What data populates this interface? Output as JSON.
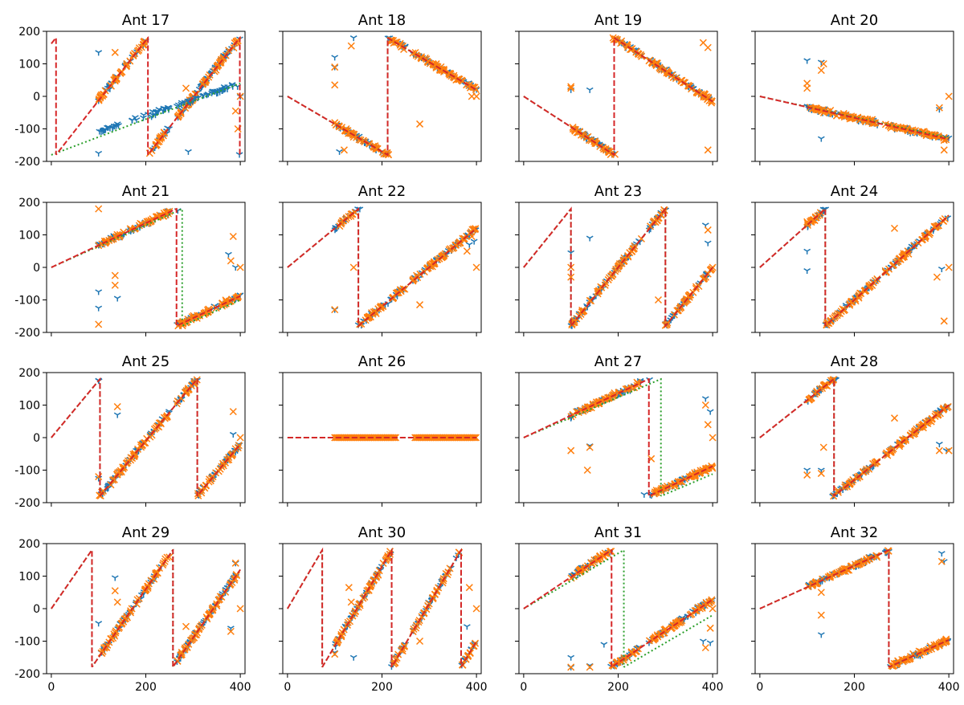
{
  "chart_data": {
    "type": "scatter",
    "grid": false,
    "xlim": [
      -10,
      410
    ],
    "ylim": [
      -200,
      200
    ],
    "xticks": [
      0,
      200,
      400
    ],
    "yticks": [
      -200,
      -100,
      0,
      100,
      200
    ],
    "xtick_labels": [
      "0",
      "200",
      "400"
    ],
    "ytick_labels": [
      "-200",
      "-100",
      "0",
      "100",
      "200"
    ],
    "x_range": [
      0,
      400
    ],
    "colors": {
      "marker_y": "#1f77b4",
      "marker_x": "#ff7f0e",
      "dashed": "#d62728",
      "dotted": "#2ca02c"
    },
    "panels": [
      {
        "title": "Ant 17",
        "fit_slope": 1.85,
        "fit_offset": 162,
        "dotted_slope": 0.55,
        "dotted_offset": 180,
        "data_x": [
          100,
          400
        ],
        "y_track": [
          -110,
          40
        ],
        "outliers_y": [
          [
            100,
            135
          ],
          [
            100,
            -175
          ],
          [
            290,
            -170
          ],
          [
            400,
            0
          ]
        ],
        "outliers_x": [
          [
            135,
            135
          ],
          [
            285,
            25
          ],
          [
            390,
            -45
          ],
          [
            400,
            0
          ],
          [
            395,
            -100
          ]
        ]
      },
      {
        "title": "Ant 18",
        "fit_slope": -0.85,
        "fit_offset": 0,
        "dotted_slope": -0.85,
        "dotted_offset": 0,
        "data_x": [
          100,
          400
        ],
        "outliers_y": [
          [
            100,
            120
          ],
          [
            100,
            90
          ],
          [
            140,
            180
          ],
          [
            110,
            -170
          ]
        ],
        "outliers_x": [
          [
            100,
            90
          ],
          [
            100,
            35
          ],
          [
            135,
            155
          ],
          [
            120,
            -165
          ],
          [
            280,
            -85
          ],
          [
            390,
            0
          ],
          [
            400,
            0
          ]
        ]
      },
      {
        "title": "Ant 19",
        "fit_slope": -0.94,
        "fit_offset": 0,
        "dotted_slope": -0.94,
        "dotted_offset": 0,
        "data_x": [
          100,
          400
        ],
        "outliers_y": [
          [
            140,
            20
          ],
          [
            100,
            20
          ]
        ],
        "outliers_x": [
          [
            100,
            25
          ],
          [
            100,
            30
          ],
          [
            380,
            165
          ],
          [
            390,
            -165
          ],
          [
            390,
            150
          ]
        ]
      },
      {
        "title": "Ant 20",
        "fit_slope": -0.33,
        "fit_offset": 0,
        "dotted_slope": -0.32,
        "dotted_offset": 0,
        "data_x": [
          100,
          400
        ],
        "outliers_y": [
          [
            100,
            110
          ],
          [
            130,
            105
          ],
          [
            130,
            -130
          ],
          [
            380,
            -40
          ]
        ],
        "outliers_x": [
          [
            100,
            40
          ],
          [
            100,
            25
          ],
          [
            135,
            100
          ],
          [
            130,
            80
          ],
          [
            380,
            -35
          ],
          [
            390,
            -165
          ],
          [
            400,
            0
          ],
          [
            390,
            -135
          ]
        ]
      },
      {
        "title": "Ant 21",
        "fit_slope": 0.68,
        "fit_offset": 0,
        "dotted_slope": 0.65,
        "dotted_offset": 0,
        "data_x": [
          100,
          400
        ],
        "outliers_y": [
          [
            100,
            -75
          ],
          [
            100,
            -125
          ],
          [
            140,
            -95
          ],
          [
            375,
            40
          ],
          [
            390,
            0
          ]
        ],
        "outliers_x": [
          [
            100,
            180
          ],
          [
            100,
            -175
          ],
          [
            135,
            -25
          ],
          [
            135,
            -55
          ],
          [
            385,
            95
          ],
          [
            380,
            20
          ],
          [
            400,
            0
          ]
        ]
      },
      {
        "title": "Ant 22",
        "fit_slope": 1.2,
        "fit_offset": 0,
        "dotted_slope": 1.2,
        "dotted_offset": 0,
        "data_x": [
          100,
          400
        ],
        "outliers_y": [
          [
            100,
            -130
          ],
          [
            385,
            70
          ],
          [
            395,
            80
          ]
        ],
        "outliers_x": [
          [
            100,
            -130
          ],
          [
            140,
            0
          ],
          [
            280,
            -115
          ],
          [
            380,
            50
          ],
          [
            400,
            0
          ],
          [
            390,
            95
          ]
        ]
      },
      {
        "title": "Ant 23",
        "fit_slope": 1.8,
        "fit_offset": 0,
        "dotted_slope": 1.8,
        "dotted_offset": 0,
        "data_x": [
          100,
          400
        ],
        "outliers_y": [
          [
            140,
            90
          ],
          [
            100,
            45
          ],
          [
            385,
            130
          ],
          [
            390,
            75
          ]
        ],
        "outliers_x": [
          [
            100,
            0
          ],
          [
            100,
            -30
          ],
          [
            285,
            -100
          ],
          [
            390,
            115
          ],
          [
            400,
            0
          ],
          [
            390,
            -20
          ]
        ]
      },
      {
        "title": "Ant 24",
        "fit_slope": 1.3,
        "fit_offset": 0,
        "dotted_slope": 1.3,
        "dotted_offset": 0,
        "data_x": [
          100,
          400
        ],
        "outliers_y": [
          [
            100,
            50
          ],
          [
            100,
            -10
          ],
          [
            385,
            -5
          ]
        ],
        "outliers_x": [
          [
            100,
            140
          ],
          [
            285,
            120
          ],
          [
            375,
            -30
          ],
          [
            390,
            -165
          ],
          [
            400,
            0
          ]
        ]
      },
      {
        "title": "Ant 25",
        "fit_slope": 1.75,
        "fit_offset": 0,
        "dotted_slope": 1.75,
        "dotted_offset": 0,
        "data_x": [
          100,
          400
        ],
        "outliers_y": [
          [
            140,
            70
          ],
          [
            100,
            -125
          ],
          [
            385,
            10
          ]
        ],
        "outliers_x": [
          [
            140,
            95
          ],
          [
            100,
            -120
          ],
          [
            385,
            80
          ],
          [
            400,
            0
          ]
        ]
      },
      {
        "title": "Ant 26",
        "fit_slope": 0,
        "fit_offset": 0,
        "dotted_slope": 0,
        "dotted_offset": 0,
        "data_x": [
          100,
          400
        ],
        "flat": true,
        "outliers_y": [],
        "outliers_x": []
      },
      {
        "title": "Ant 27",
        "fit_slope": 0.68,
        "fit_offset": 0,
        "dotted_slope": 0.62,
        "dotted_offset": 0,
        "data_x": [
          100,
          400
        ],
        "outliers_y": [
          [
            140,
            -25
          ],
          [
            100,
            60
          ],
          [
            255,
            -175
          ],
          [
            385,
            120
          ],
          [
            395,
            80
          ]
        ],
        "outliers_x": [
          [
            100,
            -40
          ],
          [
            140,
            -30
          ],
          [
            135,
            -100
          ],
          [
            270,
            -65
          ],
          [
            385,
            100
          ],
          [
            390,
            40
          ],
          [
            400,
            0
          ]
        ]
      },
      {
        "title": "Ant 28",
        "fit_slope": 1.15,
        "fit_offset": 0,
        "dotted_slope": 1.15,
        "dotted_offset": 0,
        "data_x": [
          100,
          400
        ],
        "outliers_y": [
          [
            100,
            -100
          ],
          [
            130,
            -100
          ],
          [
            380,
            -20
          ],
          [
            395,
            -40
          ]
        ],
        "outliers_x": [
          [
            100,
            -115
          ],
          [
            135,
            -30
          ],
          [
            130,
            -110
          ],
          [
            285,
            60
          ],
          [
            380,
            -40
          ],
          [
            400,
            -40
          ]
        ]
      },
      {
        "title": "Ant 29",
        "fit_slope": 2.1,
        "fit_offset": 0,
        "dotted_slope": 2.1,
        "dotted_offset": 0,
        "data_x": [
          100,
          400
        ],
        "outliers_y": [
          [
            135,
            95
          ],
          [
            100,
            -45
          ],
          [
            380,
            -60
          ],
          [
            390,
            140
          ]
        ],
        "outliers_x": [
          [
            135,
            55
          ],
          [
            140,
            20
          ],
          [
            285,
            -55
          ],
          [
            380,
            -70
          ],
          [
            390,
            140
          ],
          [
            400,
            0
          ]
        ]
      },
      {
        "title": "Ant 30",
        "fit_slope": 2.45,
        "fit_offset": 0,
        "dotted_slope": 2.45,
        "dotted_offset": 0,
        "data_x": [
          100,
          400
        ],
        "outliers_y": [
          [
            100,
            -135
          ],
          [
            140,
            -150
          ],
          [
            380,
            -55
          ]
        ],
        "outliers_x": [
          [
            130,
            65
          ],
          [
            135,
            20
          ],
          [
            100,
            -140
          ],
          [
            280,
            -100
          ],
          [
            385,
            65
          ],
          [
            400,
            0
          ]
        ]
      },
      {
        "title": "Ant 31",
        "fit_slope": 0.97,
        "fit_offset": 0,
        "dotted_slope": 0.85,
        "dotted_offset": 0,
        "data_x": [
          100,
          400
        ],
        "outliers_y": [
          [
            100,
            -150
          ],
          [
            100,
            -180
          ],
          [
            140,
            -175
          ],
          [
            170,
            -110
          ],
          [
            380,
            -100
          ],
          [
            395,
            -105
          ]
        ],
        "outliers_x": [
          [
            100,
            -180
          ],
          [
            140,
            -180
          ],
          [
            385,
            -120
          ],
          [
            395,
            -60
          ],
          [
            400,
            0
          ]
        ]
      },
      {
        "title": "Ant 32",
        "fit_slope": 0.66,
        "fit_offset": 0,
        "dotted_slope": 0.66,
        "dotted_offset": 0,
        "data_x": [
          100,
          400
        ],
        "outliers_y": [
          [
            130,
            -80
          ],
          [
            385,
            170
          ],
          [
            390,
            145
          ]
        ],
        "outliers_x": [
          [
            130,
            50
          ],
          [
            130,
            -20
          ],
          [
            385,
            145
          ],
          [
            390,
            -100
          ]
        ]
      }
    ]
  }
}
